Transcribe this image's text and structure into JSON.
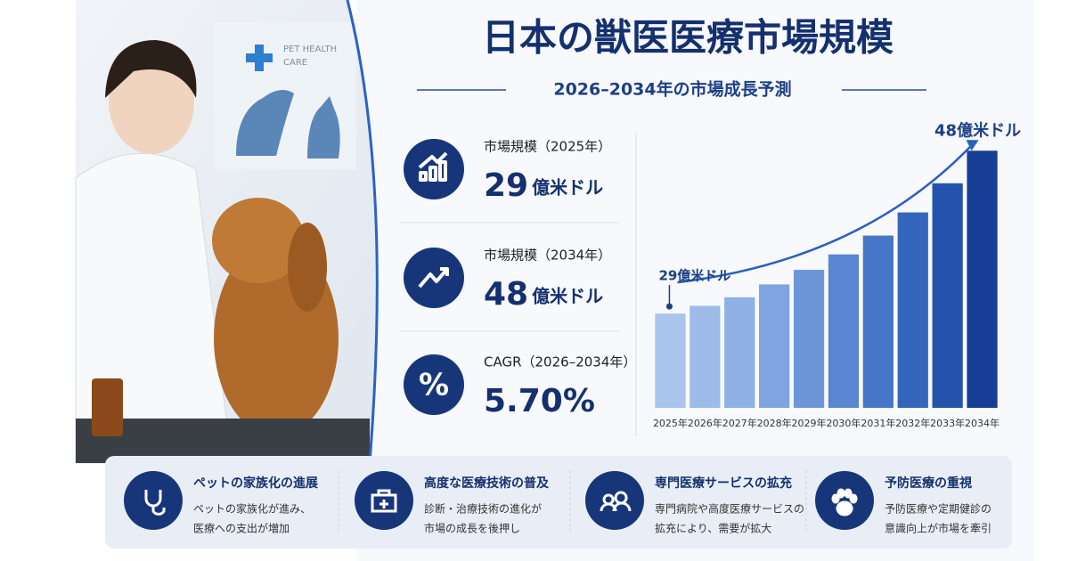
{
  "header": {
    "title": "日本の獣医医療市場規模",
    "subtitle": "2026–2034年の市場成長予測"
  },
  "photo_sign": [
    "PET HEALTH",
    "CARE"
  ],
  "stats": [
    {
      "label": "市場規模（2025年）",
      "value": "29",
      "unit": "億米ドル"
    },
    {
      "label": "市場規模（2034年）",
      "value": "48",
      "unit": "億米ドル"
    },
    {
      "label": "CAGR（2026–2034年）",
      "value": "5.70%"
    }
  ],
  "chart_data": {
    "type": "bar",
    "categories": [
      "2025年",
      "2026年",
      "2027年",
      "2028年",
      "2029年",
      "2030年",
      "2031年",
      "2032年",
      "2033年",
      "2034年"
    ],
    "values": [
      29,
      29.9,
      30.9,
      32.4,
      34.1,
      35.9,
      38.1,
      40.8,
      44.2,
      48
    ],
    "value_labels": [
      "29億米ドル",
      null,
      null,
      null,
      null,
      null,
      null,
      null,
      null,
      "48億米ドル"
    ],
    "colors": [
      "#a9c5ec",
      "#9dbbe8",
      "#8fb0e4",
      "#7fa4df",
      "#6d96d9",
      "#5a86d1",
      "#4776c8",
      "#3465bd",
      "#2553ac",
      "#173d94"
    ],
    "ylim": [
      18,
      50
    ]
  },
  "features": [
    {
      "title": "ペットの家族化の進展",
      "lines": [
        "ペットの家族化が進み、",
        "医療への支出が増加"
      ]
    },
    {
      "title": "高度な医療技術の普及",
      "lines": [
        "診断・治療技術の進化が",
        "市場の成長を後押し"
      ]
    },
    {
      "title": "専門医療サービスの拡充",
      "lines": [
        "専門病院や高度医療サービスの",
        "拡充により、需要が拡大"
      ]
    },
    {
      "title": "予防医療の重視",
      "lines": [
        "予防医療や定期健診の",
        "意識向上が市場を牽引"
      ]
    }
  ]
}
